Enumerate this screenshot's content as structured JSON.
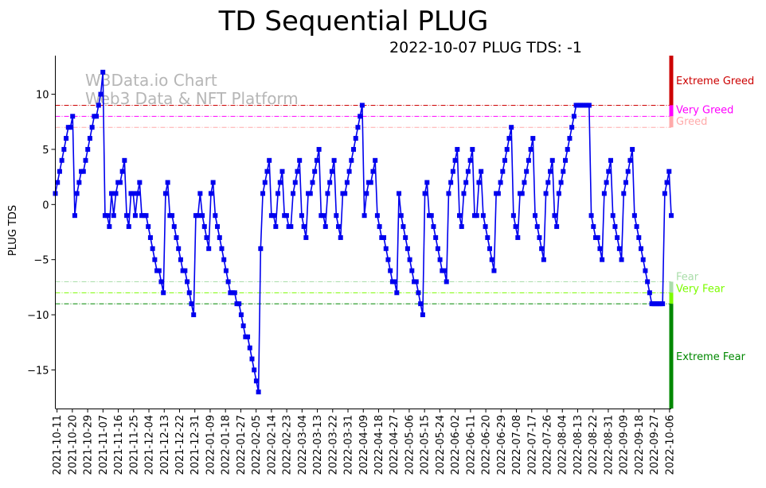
{
  "chart_data": {
    "type": "line",
    "title": "TD Sequential PLUG",
    "subtitle": "2022-10-07 PLUG TDS: -1",
    "xlabel": "",
    "ylabel": "PLUG TDS",
    "ylim": [
      -18.5,
      13.5
    ],
    "yticks": [
      10,
      5,
      0,
      -5,
      -10,
      -15
    ],
    "watermark": [
      "W3Data.io Chart",
      "Web3 Data & NFT Platform"
    ],
    "x_start": "2021-10-10",
    "x_end": "2022-10-07",
    "xticks": [
      "2021-10-11",
      "2021-10-20",
      "2021-10-29",
      "2021-11-07",
      "2021-11-16",
      "2021-11-25",
      "2021-12-04",
      "2021-12-13",
      "2021-12-22",
      "2021-12-31",
      "2022-01-09",
      "2022-01-18",
      "2022-01-27",
      "2022-02-05",
      "2022-02-14",
      "2022-02-23",
      "2022-03-04",
      "2022-03-13",
      "2022-03-22",
      "2022-03-31",
      "2022-04-09",
      "2022-04-18",
      "2022-04-27",
      "2022-05-06",
      "2022-05-15",
      "2022-05-24",
      "2022-06-02",
      "2022-06-11",
      "2022-06-20",
      "2022-06-29",
      "2022-07-08",
      "2022-07-17",
      "2022-07-26",
      "2022-08-04",
      "2022-08-13",
      "2022-08-22",
      "2022-08-31",
      "2022-09-09",
      "2022-09-18",
      "2022-09-27",
      "2022-10-06"
    ],
    "levels": [
      {
        "name": "Extreme Greed",
        "value": 9,
        "color": "#cc0000",
        "band": [
          9,
          13.5
        ]
      },
      {
        "name": "Very Greed",
        "value": 8,
        "color": "#ff00ff",
        "band": [
          8,
          9
        ]
      },
      {
        "name": "Greed",
        "value": 7,
        "color": "#ffaaaa",
        "band": [
          7,
          8
        ]
      },
      {
        "name": "Fear",
        "value": -7,
        "color": "#aaddaa",
        "band": [
          -8,
          -7
        ]
      },
      {
        "name": "Very Fear",
        "value": -8,
        "color": "#7cfc00",
        "band": [
          -9,
          -8
        ]
      },
      {
        "name": "Extreme Fear",
        "value": -9,
        "color": "#008800",
        "band": [
          -18.5,
          -9
        ]
      }
    ],
    "series": [
      {
        "name": "PLUG TDS",
        "color": "#0000ee",
        "values": [
          1,
          2,
          3,
          4,
          5,
          6,
          7,
          7,
          8,
          -1,
          1,
          2,
          3,
          3,
          4,
          5,
          6,
          7,
          8,
          8,
          9,
          10,
          12,
          -1,
          -1,
          -2,
          1,
          -1,
          1,
          2,
          2,
          3,
          4,
          -1,
          -2,
          1,
          1,
          -1,
          1,
          2,
          -1,
          -1,
          -1,
          -2,
          -3,
          -4,
          -5,
          -6,
          -6,
          -7,
          -8,
          1,
          2,
          -1,
          -1,
          -2,
          -3,
          -4,
          -5,
          -6,
          -6,
          -7,
          -8,
          -9,
          -10,
          -1,
          -1,
          1,
          -1,
          -2,
          -3,
          -4,
          1,
          2,
          -1,
          -2,
          -3,
          -4,
          -5,
          -6,
          -7,
          -8,
          -8,
          -8,
          -9,
          -9,
          -10,
          -11,
          -12,
          -12,
          -13,
          -14,
          -15,
          -16,
          -17,
          -4,
          1,
          2,
          3,
          4,
          -1,
          -1,
          -2,
          1,
          2,
          3,
          -1,
          -1,
          -2,
          -2,
          1,
          2,
          3,
          4,
          -1,
          -2,
          -3,
          1,
          1,
          2,
          3,
          4,
          5,
          -1,
          -1,
          -2,
          1,
          2,
          3,
          4,
          -1,
          -2,
          -3,
          1,
          1,
          2,
          3,
          4,
          5,
          6,
          7,
          8,
          9,
          -1,
          1,
          2,
          2,
          3,
          4,
          -1,
          -2,
          -3,
          -3,
          -4,
          -5,
          -6,
          -7,
          -7,
          -8,
          1,
          -1,
          -2,
          -3,
          -4,
          -5,
          -6,
          -7,
          -7,
          -8,
          -9,
          -10,
          1,
          2,
          -1,
          -1,
          -2,
          -3,
          -4,
          -5,
          -6,
          -6,
          -7,
          1,
          2,
          3,
          4,
          5,
          -1,
          -2,
          1,
          2,
          3,
          4,
          5,
          -1,
          -1,
          2,
          3,
          -1,
          -2,
          -3,
          -4,
          -5,
          -6,
          1,
          1,
          2,
          3,
          4,
          5,
          6,
          7,
          -1,
          -2,
          -3,
          1,
          1,
          2,
          3,
          4,
          5,
          6,
          -1,
          -2,
          -3,
          -4,
          -5,
          1,
          2,
          3,
          4,
          -1,
          -2,
          1,
          2,
          3,
          4,
          5,
          6,
          7,
          8,
          9,
          9,
          9,
          9,
          9,
          9,
          9,
          -1,
          -2,
          -3,
          -3,
          -4,
          -5,
          1,
          2,
          3,
          4,
          -1,
          -2,
          -3,
          -4,
          -5,
          1,
          2,
          3,
          4,
          5,
          -1,
          -2,
          -3,
          -4,
          -5,
          -6,
          -7,
          -8,
          -9,
          -9,
          -9,
          -9,
          -9,
          -9,
          1,
          2,
          3,
          -1
        ]
      }
    ]
  }
}
